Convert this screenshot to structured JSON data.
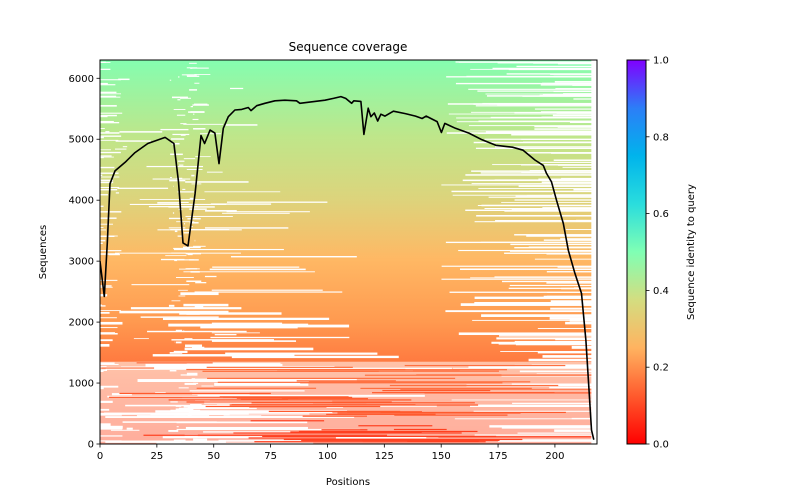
{
  "chart_data": {
    "type": "heatmap",
    "title": "Sequence coverage",
    "xlabel": "Positions",
    "ylabel": "Sequences",
    "xlim": [
      0,
      218.5
    ],
    "ylim": [
      0,
      6300
    ],
    "x_ticks": [
      0,
      25,
      50,
      75,
      100,
      125,
      150,
      175,
      200
    ],
    "x_tick_labels": [
      "0",
      "25",
      "50",
      "75",
      "100",
      "125",
      "150",
      "175",
      "200"
    ],
    "y_ticks": [
      0,
      1000,
      2000,
      3000,
      4000,
      5000,
      6000
    ],
    "y_tick_labels": [
      "0",
      "1000",
      "2000",
      "3000",
      "4000",
      "5000",
      "6000"
    ],
    "colorbar": {
      "label": "Sequence identity to query",
      "range": [
        0,
        1
      ],
      "ticks": [
        0.0,
        0.2,
        0.4,
        0.6,
        0.8,
        1.0
      ],
      "tick_labels": [
        "0.0",
        "0.2",
        "0.4",
        "0.6",
        "0.8",
        "1.0"
      ],
      "colormap": "rainbow_r",
      "stops": [
        "#ff0000",
        "#ff5a2d",
        "#ffb360",
        "#d4dd80",
        "#80ffb4",
        "#2adddd",
        "#00b4ec",
        "#2c7ef7",
        "#8000ff"
      ]
    },
    "identity_by_sequence": {
      "description_values": [
        [
          0,
          0.12
        ],
        [
          1000,
          0.16
        ],
        [
          2000,
          0.22
        ],
        [
          3000,
          0.28
        ],
        [
          4000,
          0.33
        ],
        [
          5000,
          0.4
        ],
        [
          6300,
          0.5
        ]
      ]
    },
    "coverage_line": {
      "name": "coverage",
      "color": "#000000",
      "x": [
        0,
        1.9,
        3.2,
        4.4,
        6.6,
        11,
        15.4,
        21,
        28.6,
        32.5,
        34.5,
        36.5,
        38.7,
        41.8,
        44.4,
        46,
        48.4,
        50.5,
        52.3,
        54.2,
        56.4,
        59.3,
        62.3,
        65.2,
        66.4,
        68.9,
        72.5,
        76.9,
        81.3,
        86.4,
        87.9,
        90.1,
        94.5,
        98.9,
        102.6,
        105.9,
        108,
        110.6,
        111.6,
        114.7,
        116,
        117.9,
        119.1,
        120.6,
        122.1,
        123.5,
        125.3,
        129,
        134.2,
        138.7,
        141.6,
        143.4,
        148.2,
        150.1,
        151.6,
        156.3,
        162.2,
        168,
        174,
        181.3,
        186,
        191.2,
        194.9,
        196.3,
        198.5,
        200.7,
        203.7,
        205.9,
        208.8,
        211.7,
        213.6,
        215,
        216.1,
        217.1
      ],
      "y": [
        3000,
        2420,
        3300,
        4270,
        4480,
        4620,
        4780,
        4930,
        5030,
        4930,
        4300,
        3300,
        3250,
        4110,
        5060,
        4930,
        5150,
        5100,
        4600,
        5180,
        5370,
        5480,
        5490,
        5520,
        5470,
        5550,
        5590,
        5630,
        5640,
        5630,
        5590,
        5600,
        5620,
        5640,
        5670,
        5700,
        5670,
        5590,
        5630,
        5620,
        5080,
        5510,
        5370,
        5430,
        5300,
        5410,
        5380,
        5460,
        5420,
        5380,
        5340,
        5380,
        5290,
        5110,
        5260,
        5180,
        5100,
        4990,
        4900,
        4870,
        4820,
        4660,
        4570,
        4440,
        4300,
        4000,
        3620,
        3180,
        2800,
        2470,
        1700,
        890,
        230,
        70
      ]
    }
  }
}
